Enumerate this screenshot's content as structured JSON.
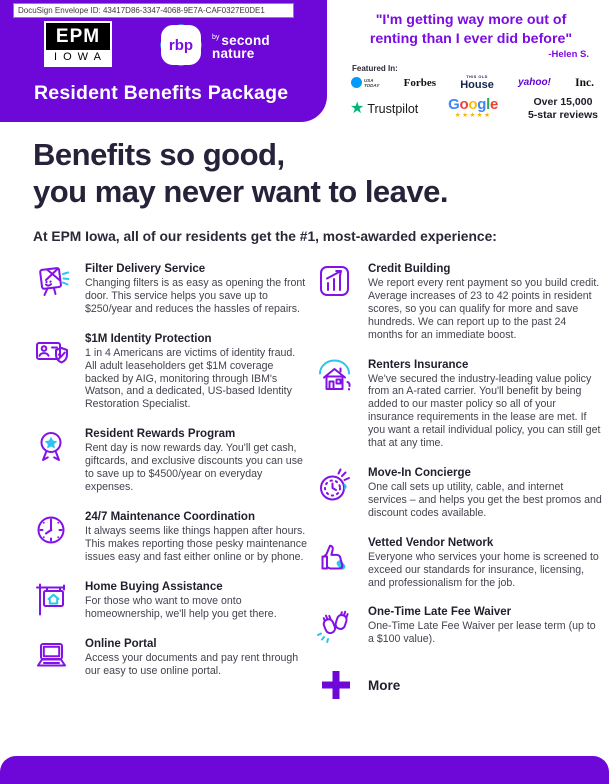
{
  "docusign": {
    "label": "DocuSign Envelope ID: 43417D86-3347-4068-9E7A-CAF0327E0DE1"
  },
  "header": {
    "epm_logo": {
      "line1": "EPM",
      "line2": "IOWA"
    },
    "rbp_logo": {
      "abbr": "rbp",
      "by": "by",
      "brand_line1": "second",
      "brand_line2": "nature"
    },
    "banner_title": "Resident Benefits Package"
  },
  "testimonial": {
    "quote_line1": "\"I'm getting way more out of",
    "quote_line2": "renting than I ever did before\"",
    "attribution": "-Helen S."
  },
  "featured": {
    "label": "Featured In:",
    "usa_today_line1": "USA",
    "usa_today_line2": "TODAY",
    "forbes": "Forbes",
    "this_old_house_line1": "THIS OLD",
    "this_old_house_line2": "House",
    "yahoo": "yahoo!",
    "inc": "Inc."
  },
  "reviews": {
    "trustpilot_star": "★",
    "trustpilot": "Trustpilot",
    "google": {
      "letters": [
        {
          "ch": "G",
          "color": "#4285F4"
        },
        {
          "ch": "o",
          "color": "#EA4335"
        },
        {
          "ch": "o",
          "color": "#FBBC05"
        },
        {
          "ch": "g",
          "color": "#4285F4"
        },
        {
          "ch": "l",
          "color": "#34A853"
        },
        {
          "ch": "e",
          "color": "#EA4335"
        }
      ]
    },
    "google_stars": "★★★★★",
    "summary_line1": "Over 15,000",
    "summary_line2": "5-star reviews"
  },
  "hero": {
    "title_line1": "Benefits so good,",
    "title_line2": "you may never want to leave.",
    "subtitle": "At EPM Iowa, all of our residents get the #1, most-awarded experience:"
  },
  "benefits": {
    "left": [
      {
        "icon": "filter-delivery-icon",
        "title": "Filter Delivery Service",
        "description": "Changing filters is as easy as opening the front door. This service helps you save up to $250/year and reduces the hassles of repairs."
      },
      {
        "icon": "identity-protection-icon",
        "title": "$1M Identity Protection",
        "description": "1 in 4 Americans are victims of identity fraud. All adult leaseholders get $1M coverage backed by AIG, monitoring through IBM's Watson, and a dedicated, US-based Identity Restoration Specialist."
      },
      {
        "icon": "rewards-medal-icon",
        "title": "Resident Rewards Program",
        "description": "Rent day is now rewards day. You'll get cash, giftcards, and exclusive discounts you can use to save up to $4500/year on everyday expenses."
      },
      {
        "icon": "clock-icon",
        "title": "24/7 Maintenance Coordination",
        "description": "It always seems like things happen after hours. This makes reporting those pesky maintenance issues easy and fast either online or by phone."
      },
      {
        "icon": "home-sign-icon",
        "title": "Home Buying Assistance",
        "description": "For those who want to move onto homeownership, we'll help you get there."
      },
      {
        "icon": "laptop-icon",
        "title": "Online Portal",
        "description": "Access your documents and pay rent through our easy to use online portal."
      }
    ],
    "right": [
      {
        "icon": "credit-chart-icon",
        "title": "Credit Building",
        "description": "We report every rent payment so you build credit. Average increases of 23 to 42 points in resident scores, so you can qualify for more and save hundreds. We can report up to the past 24 months for an immediate boost."
      },
      {
        "icon": "insured-house-icon",
        "title": "Renters Insurance",
        "description": "We've secured the industry-leading value policy from an A-rated carrier. You'll benefit by being added to our master policy so all of your insurance requirements in the lease are met. If you want a retail individual policy, you can still get that at any time."
      },
      {
        "icon": "concierge-dial-icon",
        "title": "Move-In Concierge",
        "description": "One call sets up utility, cable, and internet services – and helps you get the best promos and discount codes available."
      },
      {
        "icon": "thumbs-up-icon",
        "title": "Vetted Vendor Network",
        "description": "Everyone who services your home is screened to exceed our standards for insurance, licensing, and professionalism for the job."
      },
      {
        "icon": "clapping-hands-icon",
        "title": "One-Time Late Fee Waiver",
        "description": "One-Time Late Fee Waiver per lease term (up to a $100 value)."
      }
    ],
    "more_label": "More"
  },
  "colors": {
    "brand_purple": "#6d08d8",
    "icon_purple": "#8212e6",
    "accent_cyan": "#2fc3ef",
    "quote_purple": "#7b0ce2",
    "headline_dark": "#27213a",
    "trustpilot_green": "#00b67a"
  }
}
